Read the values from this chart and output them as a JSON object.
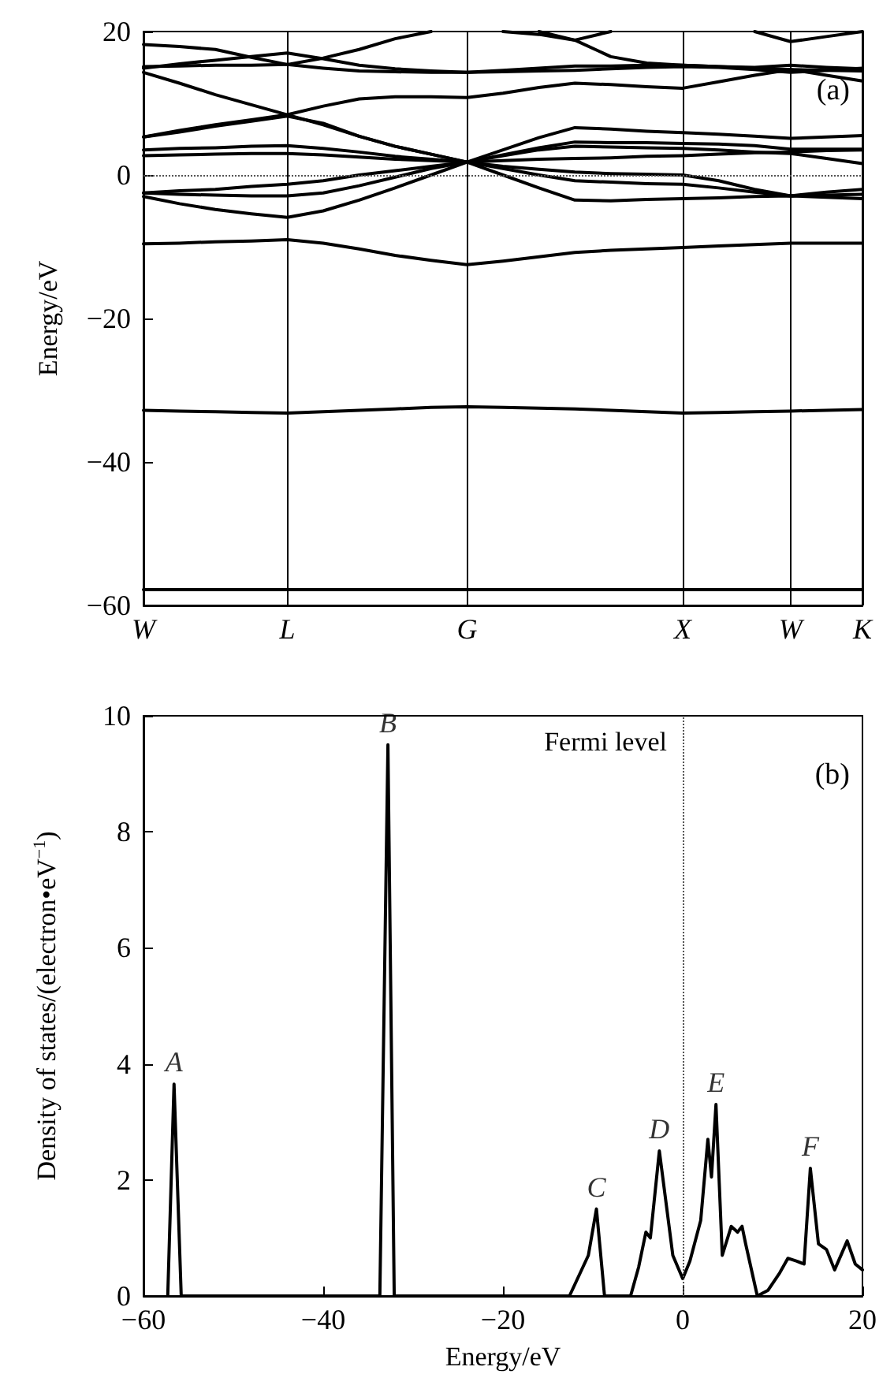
{
  "chart_data": [
    {
      "type": "line",
      "ylabel": "Energy/eV",
      "annotations": [
        "(a)"
      ],
      "categories": [
        "W",
        null,
        null,
        null,
        "L",
        null,
        null,
        null,
        null,
        "G",
        null,
        null,
        null,
        null,
        null,
        "X",
        null,
        null,
        "W",
        null,
        "K"
      ],
      "ylim": [
        -60,
        20
      ],
      "yticks": [
        -60,
        -40,
        -20,
        0,
        20
      ],
      "grid": "x",
      "ref_lines": [
        {
          "axis": "y",
          "value": 0,
          "line_style": "dotted",
          "color": "#555555"
        }
      ],
      "series": [
        {
          "color": "#000000",
          "values": [
            -57.8,
            -57.8,
            -57.8,
            -57.8,
            -57.8,
            -57.8,
            -57.8,
            -57.8,
            -57.8,
            -57.8,
            -57.8,
            -57.8,
            -57.8,
            -57.8,
            -57.8,
            -57.8,
            -57.8,
            -57.8,
            -57.8,
            -57.8,
            -57.8
          ]
        },
        {
          "color": "#000000",
          "values": [
            -32.8,
            -32.9,
            -33.0,
            -33.1,
            -33.2,
            -33.0,
            -32.8,
            -32.6,
            -32.4,
            -32.3,
            -32.4,
            -32.5,
            -32.6,
            -32.8,
            -33.0,
            -33.2,
            -33.1,
            -33.0,
            -32.9,
            -32.8,
            -32.7
          ]
        },
        {
          "color": "#000000",
          "values": [
            -9.6,
            -9.5,
            -9.3,
            -9.2,
            -9.0,
            -9.5,
            -10.3,
            -11.2,
            -11.9,
            -12.5,
            -12.0,
            -11.4,
            -10.8,
            -10.5,
            -10.3,
            -10.1,
            -9.9,
            -9.7,
            -9.5,
            -9.5,
            -9.5
          ]
        },
        {
          "color": "#000000",
          "values": [
            -3.0,
            -4.0,
            -4.8,
            -5.4,
            -5.9,
            -5.0,
            -3.5,
            -1.8,
            0.0,
            1.8,
            0.0,
            -1.8,
            -3.5,
            -3.6,
            -3.4,
            -3.3,
            -3.2,
            -3.0,
            -2.9,
            -3.1,
            -3.3
          ]
        },
        {
          "color": "#000000",
          "values": [
            -2.5,
            -2.7,
            -2.8,
            -2.9,
            -2.9,
            -2.5,
            -1.5,
            -0.3,
            0.9,
            1.8,
            0.9,
            0.0,
            -0.8,
            -1.0,
            -1.2,
            -1.3,
            -1.8,
            -2.4,
            -2.9,
            -2.4,
            -2.0
          ]
        },
        {
          "color": "#000000",
          "values": [
            -2.5,
            -2.2,
            -2.0,
            -1.6,
            -1.3,
            -0.8,
            0.0,
            0.6,
            1.2,
            1.8,
            1.2,
            0.8,
            0.4,
            0.2,
            0.1,
            0.0,
            -0.8,
            -2.0,
            -2.9,
            -2.8,
            -2.7
          ]
        },
        {
          "color": "#000000",
          "values": [
            2.7,
            2.8,
            2.9,
            3.0,
            3.0,
            2.8,
            2.5,
            2.2,
            2.0,
            1.8,
            2.0,
            2.2,
            2.3,
            2.4,
            2.6,
            2.7,
            2.9,
            3.1,
            3.2,
            3.4,
            3.5
          ]
        },
        {
          "color": "#000000",
          "values": [
            3.5,
            3.7,
            3.8,
            4.0,
            4.1,
            3.7,
            3.2,
            2.6,
            2.2,
            1.8,
            2.7,
            3.5,
            4.0,
            3.9,
            3.8,
            3.7,
            3.5,
            3.2,
            3.0,
            2.3,
            1.6
          ]
        },
        {
          "color": "#000000",
          "values": [
            5.3,
            6.0,
            6.8,
            7.5,
            8.2,
            7.2,
            5.4,
            4.0,
            2.9,
            1.8,
            3.5,
            5.2,
            6.6,
            6.4,
            6.1,
            5.9,
            5.7,
            5.4,
            5.1,
            5.3,
            5.5
          ]
        },
        {
          "color": "#000000",
          "values": [
            5.3,
            6.2,
            7.0,
            7.7,
            8.4,
            9.6,
            10.6,
            10.9,
            10.9,
            10.8,
            11.4,
            12.2,
            12.8,
            12.6,
            12.3,
            12.1,
            13.0,
            13.9,
            14.7,
            13.9,
            13.1
          ]
        },
        {
          "color": "#000000",
          "values": [
            14.3,
            12.8,
            11.2,
            9.8,
            8.4,
            7.0,
            5.4,
            4.0,
            2.9,
            1.8,
            2.8,
            3.8,
            4.6,
            4.5,
            4.5,
            4.4,
            4.3,
            4.1,
            3.6,
            3.6,
            3.6
          ]
        },
        {
          "color": "#000000",
          "values": [
            15.1,
            15.2,
            15.3,
            15.3,
            15.4,
            16.3,
            17.5,
            19.0,
            20,
            null,
            null,
            null,
            null,
            null,
            null,
            null,
            null,
            null,
            null,
            null,
            null
          ]
        },
        {
          "color": "#000000",
          "values": [
            14.9,
            15.5,
            16.0,
            16.5,
            17.0,
            16.2,
            15.3,
            14.8,
            14.5,
            14.3,
            14.4,
            14.5,
            14.6,
            14.8,
            15.0,
            15.1,
            15.0,
            14.7,
            14.3,
            14.6,
            14.9
          ]
        },
        {
          "color": "#000000",
          "values": [
            18.2,
            17.9,
            17.5,
            16.4,
            15.4,
            14.9,
            14.5,
            14.4,
            14.3,
            14.3,
            14.6,
            14.9,
            15.2,
            15.2,
            15.3,
            15.3,
            15.1,
            14.9,
            14.7,
            14.6,
            14.5
          ]
        },
        {
          "color": "#000000",
          "values": [
            null,
            null,
            null,
            null,
            null,
            null,
            null,
            null,
            null,
            null,
            20,
            19.6,
            18.8,
            16.5,
            15.6,
            15.3,
            15.1,
            15.0,
            15.3,
            15.0,
            14.8
          ]
        },
        {
          "color": "#000000",
          "values": [
            null,
            null,
            null,
            null,
            null,
            null,
            null,
            null,
            null,
            null,
            null,
            20,
            18.8,
            20,
            null,
            null,
            null,
            null,
            null,
            null,
            null
          ]
        },
        {
          "color": "#000000",
          "values": [
            null,
            null,
            null,
            null,
            null,
            null,
            null,
            null,
            null,
            null,
            null,
            null,
            null,
            null,
            null,
            null,
            null,
            20,
            18.6,
            19.3,
            20
          ]
        }
      ]
    },
    {
      "type": "line",
      "xlabel": "Energy/eV",
      "ylabel": "Density of states/(electron•eV$^{−1}$)",
      "xlim": [
        -60,
        20
      ],
      "xticks": [
        -60,
        -40,
        -20,
        0,
        20
      ],
      "ylim": [
        0,
        10
      ],
      "yticks": [
        0,
        2,
        4,
        6,
        8,
        10
      ],
      "ref_lines": [
        {
          "axis": "x",
          "value": 0,
          "label": "Fermi level",
          "line_style": "dotted",
          "color": "#555555"
        }
      ],
      "annotations": [
        "(b)",
        {
          "text": "A",
          "x": -56.6,
          "y": 3.65
        },
        {
          "text": "B",
          "x": -32.8,
          "y": 9.5
        },
        {
          "text": "C",
          "x": -9.6,
          "y": 1.5
        },
        {
          "text": "D",
          "x": -2.6,
          "y": 2.5
        },
        {
          "text": "E",
          "x": 3.7,
          "y": 3.3
        },
        {
          "text": "F",
          "x": 14.2,
          "y": 2.2
        }
      ],
      "series": [
        {
          "color": "#000000",
          "x": [
            -57.3,
            -56.6,
            -55.8,
            -33.7,
            -32.8,
            -32.1,
            -12.6,
            -10.5,
            -9.6,
            -8.7,
            -5.8,
            -4.9,
            -4.1,
            -3.6,
            -2.6,
            -1.1,
            0,
            0.8,
            2.0,
            2.8,
            3.2,
            3.7,
            4.4,
            5.4,
            6.1,
            6.6,
            7.0,
            8.3,
            9.5,
            10.8,
            11.7,
            12.7,
            13.5,
            14.2,
            15.1,
            16.0,
            16.9,
            18.3,
            19.2,
            20
          ],
          "values": [
            0,
            3.65,
            0,
            0,
            9.5,
            0,
            0,
            0.7,
            1.5,
            0,
            0,
            0.5,
            1.1,
            1.0,
            2.5,
            0.7,
            0.3,
            0.6,
            1.3,
            2.7,
            2.05,
            3.3,
            0.7,
            1.2,
            1.1,
            1.2,
            0.9,
            0,
            0.1,
            0.4,
            0.65,
            0.6,
            0.55,
            2.2,
            0.9,
            0.8,
            0.45,
            0.95,
            0.55,
            0.45
          ]
        }
      ]
    }
  ]
}
